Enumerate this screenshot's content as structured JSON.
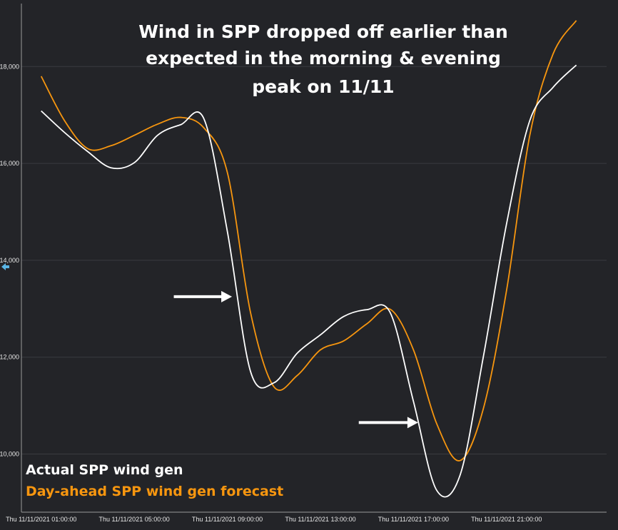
{
  "chart_data": {
    "type": "line",
    "title": [
      "Wind in SPP dropped off earlier than",
      "expected in the morning & evening",
      "peak on 11/11"
    ],
    "xlabel": "",
    "ylabel": "",
    "x_hours": [
      1,
      2,
      3,
      4,
      5,
      6,
      7,
      8,
      9,
      10,
      11,
      12,
      13,
      14,
      15,
      16,
      17,
      18,
      19,
      20,
      21,
      22,
      23,
      24
    ],
    "x_tick_hours": [
      1,
      5,
      9,
      13,
      17,
      21
    ],
    "x_tick_labels": [
      "Thu 11/11/2021 01:00:00",
      "Thu 11/11/2021 05:00:00",
      "Thu 11/11/2021 09:00:00",
      "Thu 11/11/2021 13:00:00",
      "Thu 11/11/2021 17:00:00",
      "Thu 11/11/2021 21:00:00"
    ],
    "y_ticks": [
      10000,
      12000,
      14000,
      16000,
      18000
    ],
    "y_tick_labels": [
      "10,000",
      "12,000",
      "14,000",
      "16,000",
      "18,000"
    ],
    "ylim": [
      8800,
      19300
    ],
    "xlim": [
      0.15,
      25.3
    ],
    "grid": "horizontal",
    "legend_position": "bottom-left",
    "series": [
      {
        "name": "Actual SPP wind gen",
        "color": "#ffffff",
        "values": [
          17084,
          16640,
          16244,
          15910,
          16015,
          16580,
          16800,
          16915,
          14600,
          11700,
          11470,
          12080,
          12460,
          12840,
          12980,
          12920,
          11085,
          9250,
          9560,
          12000,
          14750,
          16885,
          17570,
          18030
        ]
      },
      {
        "name": "Day-ahead SPP wind gen forecast",
        "color": "#f7960f",
        "values": [
          17800,
          16885,
          16305,
          16365,
          16580,
          16810,
          16950,
          16730,
          15815,
          12915,
          11390,
          11620,
          12150,
          12335,
          12690,
          12990,
          12150,
          10625,
          9865,
          10930,
          13375,
          16580,
          18260,
          18950
        ]
      }
    ],
    "annotations": [
      {
        "type": "arrow",
        "hour_from": 6.7,
        "hour_to": 9.2,
        "value": 13250
      },
      {
        "type": "arrow",
        "hour_from": 14.65,
        "hour_to": 17.2,
        "value": 10650
      }
    ]
  }
}
